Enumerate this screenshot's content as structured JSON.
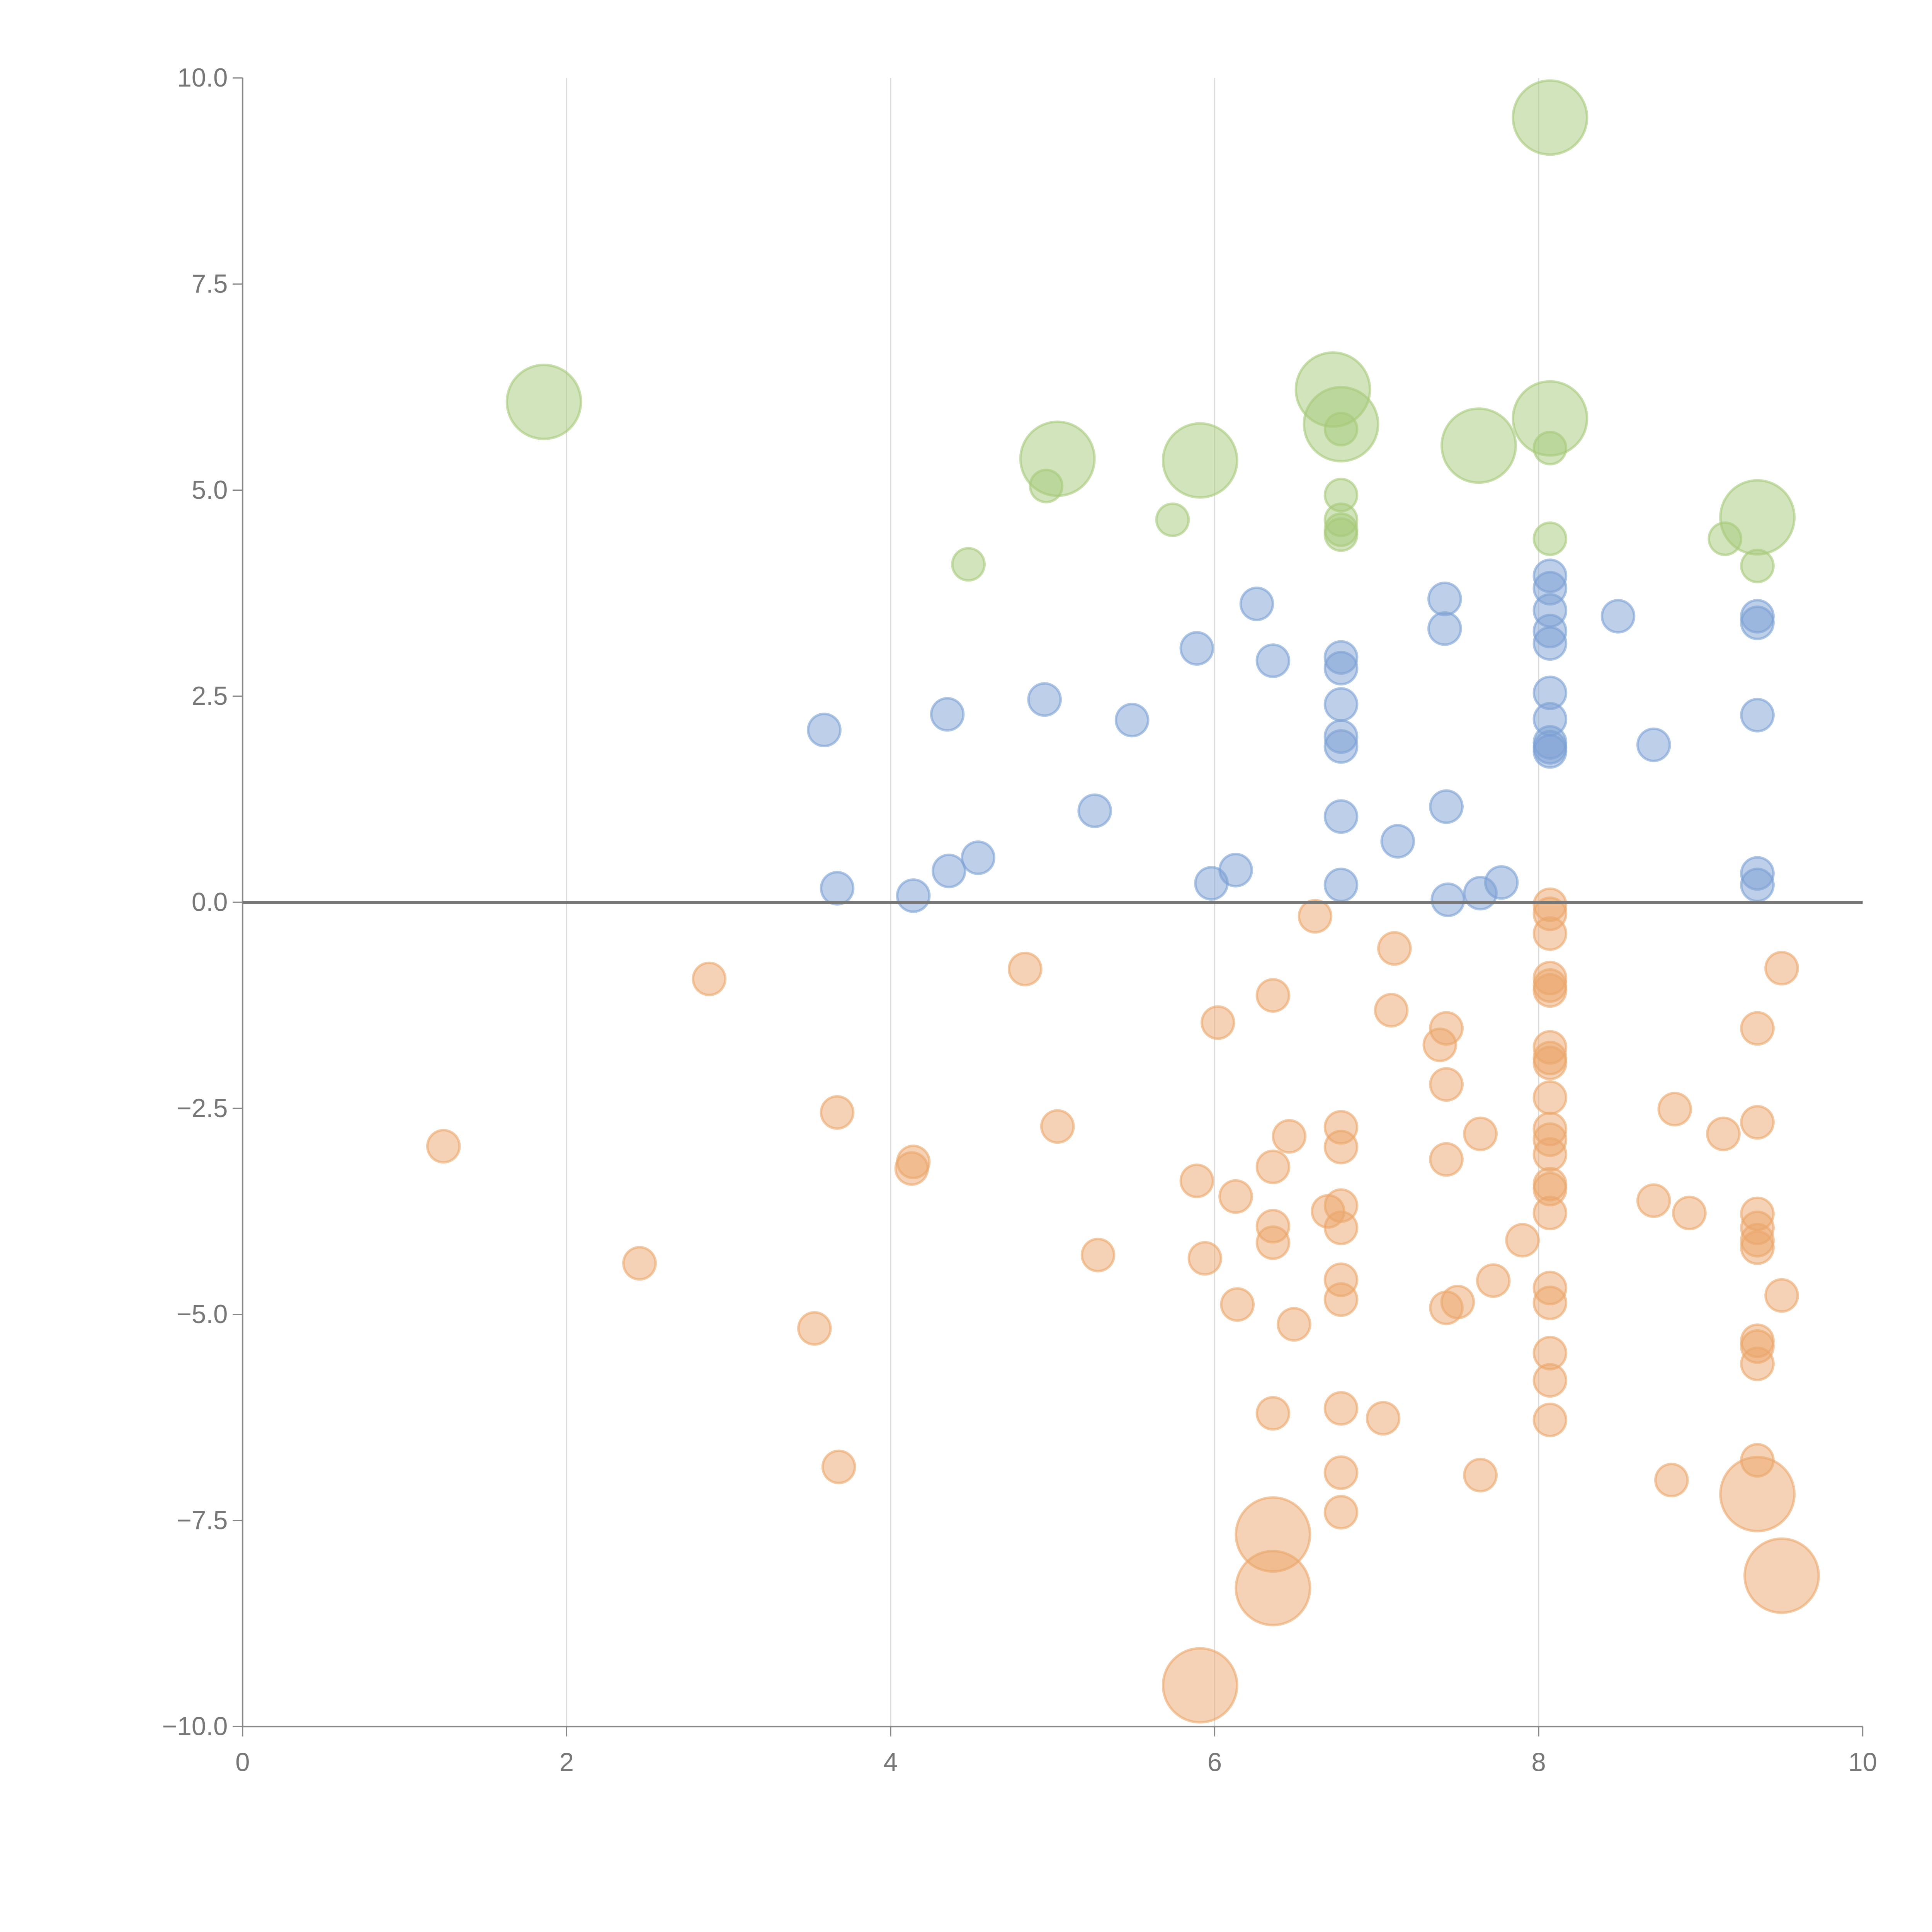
{
  "chart_data": {
    "type": "scatter",
    "title": "",
    "xlabel": "",
    "ylabel": "",
    "xlim": [
      0,
      10
    ],
    "ylim": [
      -10,
      10
    ],
    "x_ticks": [
      "0",
      "2",
      "4",
      "6",
      "8",
      "10"
    ],
    "x_tick_values": [
      0,
      2,
      4,
      6,
      8,
      10
    ],
    "y_ticks": [
      "10.0",
      "7.5",
      "5.0",
      "2.5",
      "0.0",
      "−2.5",
      "−5.0",
      "−7.5",
      "−10.0"
    ],
    "y_tick_values": [
      10,
      7.5,
      5,
      2.5,
      0,
      -2.5,
      -5,
      -7.5,
      -10
    ],
    "grid": "vertical",
    "zero_line": true,
    "point_format": "[x, y, relative_size]",
    "series": [
      {
        "color": "#a6c97a",
        "points": [
          [
            1.86,
            6.07,
            2.3
          ],
          [
            8.07,
            9.52,
            2.3
          ],
          [
            6.73,
            6.22,
            2.3
          ],
          [
            6.78,
            5.8,
            2.3
          ],
          [
            8.07,
            5.87,
            2.3
          ],
          [
            5.03,
            5.38,
            2.3
          ],
          [
            5.91,
            5.36,
            2.3
          ],
          [
            7.63,
            5.54,
            2.3
          ],
          [
            9.35,
            4.67,
            2.3
          ],
          [
            4.96,
            5.05,
            1
          ],
          [
            5.74,
            4.64,
            1
          ],
          [
            4.48,
            4.1,
            1
          ],
          [
            6.78,
            5.74,
            1
          ],
          [
            6.78,
            4.94,
            1
          ],
          [
            6.78,
            4.64,
            1
          ],
          [
            6.78,
            4.52,
            1
          ],
          [
            6.78,
            4.46,
            1
          ],
          [
            8.07,
            5.51,
            1
          ],
          [
            8.07,
            4.41,
            1
          ],
          [
            9.15,
            4.41,
            1
          ],
          [
            9.35,
            4.08,
            1
          ]
        ]
      },
      {
        "color": "#7ba0d4",
        "points": [
          [
            3.59,
            2.09,
            1
          ],
          [
            4.35,
            2.28,
            1
          ],
          [
            4.95,
            2.46,
            1
          ],
          [
            5.49,
            2.21,
            1
          ],
          [
            5.89,
            3.08,
            1
          ],
          [
            6.26,
            3.62,
            1
          ],
          [
            6.36,
            2.93,
            1
          ],
          [
            5.26,
            1.11,
            1
          ],
          [
            3.67,
            0.17,
            1
          ],
          [
            4.14,
            0.08,
            1
          ],
          [
            4.36,
            0.38,
            1
          ],
          [
            4.54,
            0.54,
            1
          ],
          [
            5.98,
            0.23,
            1
          ],
          [
            6.13,
            0.39,
            1
          ],
          [
            6.78,
            2.97,
            1
          ],
          [
            6.78,
            2.84,
            1
          ],
          [
            6.78,
            2.4,
            1
          ],
          [
            6.78,
            2.01,
            1
          ],
          [
            6.78,
            1.89,
            1
          ],
          [
            6.78,
            1.04,
            1
          ],
          [
            6.78,
            0.21,
            1
          ],
          [
            7.13,
            0.74,
            1
          ],
          [
            7.42,
            3.68,
            1
          ],
          [
            7.42,
            3.32,
            1
          ],
          [
            7.43,
            1.16,
            1
          ],
          [
            7.44,
            0.03,
            1
          ],
          [
            7.64,
            0.11,
            1
          ],
          [
            7.77,
            0.24,
            1
          ],
          [
            8.07,
            3.96,
            1
          ],
          [
            8.07,
            3.81,
            1
          ],
          [
            8.07,
            3.54,
            1
          ],
          [
            8.07,
            3.29,
            1
          ],
          [
            8.07,
            3.14,
            1
          ],
          [
            8.07,
            2.54,
            1
          ],
          [
            8.07,
            2.22,
            1
          ],
          [
            8.07,
            1.94,
            1
          ],
          [
            8.07,
            1.88,
            1
          ],
          [
            8.07,
            1.83,
            1
          ],
          [
            8.49,
            3.47,
            1
          ],
          [
            8.71,
            1.91,
            1
          ],
          [
            9.35,
            3.47,
            1
          ],
          [
            9.35,
            3.39,
            1
          ],
          [
            9.35,
            2.27,
            1
          ],
          [
            9.35,
            0.35,
            1
          ],
          [
            9.35,
            0.21,
            1
          ]
        ]
      },
      {
        "color": "#eba66b",
        "points": [
          [
            1.24,
            -2.96,
            1
          ],
          [
            2.45,
            -4.38,
            1
          ],
          [
            2.88,
            -0.93,
            1
          ],
          [
            3.53,
            -5.17,
            1
          ],
          [
            3.67,
            -2.55,
            1
          ],
          [
            3.68,
            -6.85,
            1
          ],
          [
            4.13,
            -3.23,
            1
          ],
          [
            4.14,
            -3.15,
            1
          ],
          [
            4.83,
            -0.81,
            1
          ],
          [
            5.03,
            -2.72,
            1
          ],
          [
            5.28,
            -4.28,
            1
          ],
          [
            5.89,
            -3.38,
            1
          ],
          [
            5.94,
            -4.32,
            1
          ],
          [
            6.02,
            -1.46,
            1
          ],
          [
            6.13,
            -3.57,
            1
          ],
          [
            6.14,
            -4.88,
            1
          ],
          [
            6.36,
            -1.13,
            1
          ],
          [
            6.36,
            -3.21,
            1
          ],
          [
            6.36,
            -3.93,
            1
          ],
          [
            6.36,
            -4.13,
            1
          ],
          [
            6.36,
            -6.2,
            1
          ],
          [
            6.46,
            -2.84,
            1
          ],
          [
            6.49,
            -5.12,
            1
          ],
          [
            6.62,
            -0.17,
            1
          ],
          [
            6.7,
            -3.75,
            1
          ],
          [
            6.78,
            -2.73,
            1
          ],
          [
            6.78,
            -2.97,
            1
          ],
          [
            6.78,
            -3.68,
            1
          ],
          [
            6.78,
            -3.95,
            1
          ],
          [
            6.78,
            -4.58,
            1
          ],
          [
            6.78,
            -4.82,
            1
          ],
          [
            6.78,
            -6.14,
            1
          ],
          [
            6.78,
            -6.92,
            1
          ],
          [
            6.78,
            -7.4,
            1
          ],
          [
            7.04,
            -6.26,
            1
          ],
          [
            7.09,
            -1.31,
            1
          ],
          [
            7.11,
            -0.56,
            1
          ],
          [
            7.39,
            -1.73,
            1
          ],
          [
            7.43,
            -1.53,
            1
          ],
          [
            7.43,
            -2.21,
            1
          ],
          [
            7.43,
            -3.12,
            1
          ],
          [
            7.43,
            -4.92,
            1
          ],
          [
            7.5,
            -4.85,
            1
          ],
          [
            7.64,
            -2.81,
            1
          ],
          [
            7.64,
            -6.95,
            1
          ],
          [
            7.72,
            -4.59,
            1
          ],
          [
            7.9,
            -4.1,
            1
          ],
          [
            8.07,
            -0.03,
            1
          ],
          [
            8.07,
            -0.14,
            1
          ],
          [
            8.07,
            -0.38,
            1
          ],
          [
            8.07,
            -0.92,
            1
          ],
          [
            8.07,
            -1.01,
            1
          ],
          [
            8.07,
            -1.07,
            1
          ],
          [
            8.07,
            -1.76,
            1
          ],
          [
            8.07,
            -1.89,
            1
          ],
          [
            8.07,
            -1.95,
            1
          ],
          [
            8.07,
            -2.37,
            1
          ],
          [
            8.07,
            -2.75,
            1
          ],
          [
            8.07,
            -2.88,
            1
          ],
          [
            8.07,
            -3.06,
            1
          ],
          [
            8.07,
            -3.42,
            1
          ],
          [
            8.07,
            -3.48,
            1
          ],
          [
            8.07,
            -3.77,
            1
          ],
          [
            8.07,
            -4.68,
            1
          ],
          [
            8.07,
            -4.86,
            1
          ],
          [
            8.07,
            -5.47,
            1
          ],
          [
            8.07,
            -5.8,
            1
          ],
          [
            8.07,
            -6.28,
            1
          ],
          [
            8.71,
            -3.62,
            1
          ],
          [
            8.84,
            -2.51,
            1
          ],
          [
            8.82,
            -7.01,
            1
          ],
          [
            8.93,
            -3.77,
            1
          ],
          [
            9.14,
            -2.81,
            1
          ],
          [
            9.35,
            -1.53,
            1
          ],
          [
            9.35,
            -2.67,
            1
          ],
          [
            9.35,
            -3.78,
            1
          ],
          [
            9.35,
            -3.95,
            1
          ],
          [
            9.35,
            -4.1,
            1
          ],
          [
            9.35,
            -4.19,
            1
          ],
          [
            9.35,
            -5.32,
            1
          ],
          [
            9.35,
            -5.39,
            1
          ],
          [
            9.35,
            -5.6,
            1
          ],
          [
            9.35,
            -6.77,
            1
          ],
          [
            9.5,
            -0.8,
            1
          ],
          [
            9.5,
            -4.77,
            1
          ],
          [
            6.36,
            -7.67,
            2.3
          ],
          [
            6.36,
            -8.32,
            2.3
          ],
          [
            5.91,
            -9.5,
            2.3
          ],
          [
            9.35,
            -7.18,
            2.3
          ],
          [
            9.5,
            -8.17,
            2.3
          ]
        ]
      }
    ]
  }
}
